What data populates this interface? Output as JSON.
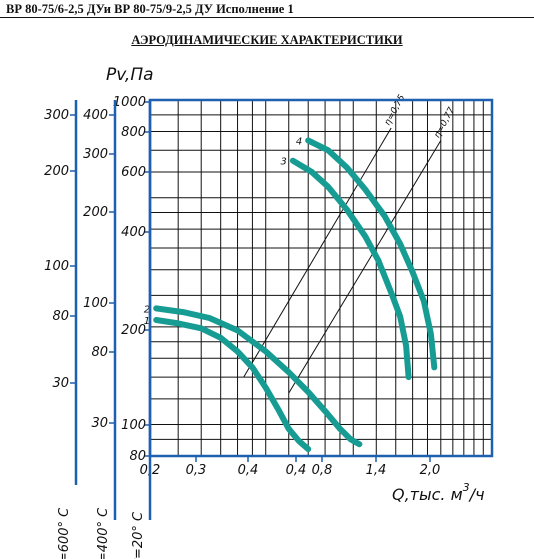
{
  "header": {
    "title": "ВР 80-75/6-2,5 ДУи ВР 80-75/9-2,5 ДУ Исполнение 1"
  },
  "chart_data": {
    "type": "line",
    "title": "АЭРОДИНАМИЧЕСКИЕ ХАРАКТЕРИСТИКИ",
    "ylabel": "Pv,Па",
    "xlabel": "Q,тыс. м³/ч",
    "xlabel_parts": {
      "main": "Q,тыс. м",
      "sup": "3",
      "tail": "/ч"
    },
    "x_scale": "log",
    "y_scale": "log",
    "xlim": [
      0.2,
      3.0
    ],
    "ylim": [
      80,
      1000
    ],
    "grid": true,
    "x_ticks": [
      "0,2",
      "0,3",
      "0,4",
      "0,4",
      "0,8",
      "1,4",
      "2,0"
    ],
    "y_ticks": [
      "80",
      "100",
      "200",
      "400",
      "600",
      "800",
      "1000"
    ],
    "aux_axes": [
      {
        "label": "t=600° C",
        "ticks": [
          "300",
          "200",
          "100",
          "80",
          "30"
        ]
      },
      {
        "label": "t=400° C",
        "ticks": [
          "400",
          "300",
          "200",
          "100",
          "80",
          "30"
        ]
      },
      {
        "label": "t=20° C",
        "ticks": [
          "1000",
          "800",
          "600",
          "400",
          "300",
          "200",
          "100",
          "80"
        ]
      }
    ],
    "efficiency_lines": [
      {
        "label": "η=0,75",
        "points": [
          [
            0.42,
            140
          ],
          [
            1.35,
            820
          ]
        ]
      },
      {
        "label": "η=0,77",
        "points": [
          [
            0.6,
            125
          ],
          [
            2.0,
            750
          ]
        ]
      }
    ],
    "series": [
      {
        "name": "1",
        "points": [
          [
            0.21,
            210
          ],
          [
            0.25,
            205
          ],
          [
            0.3,
            198
          ],
          [
            0.35,
            185
          ],
          [
            0.4,
            168
          ],
          [
            0.45,
            150
          ],
          [
            0.5,
            130
          ],
          [
            0.55,
            112
          ],
          [
            0.6,
            97
          ],
          [
            0.65,
            89
          ],
          [
            0.7,
            84
          ]
        ]
      },
      {
        "name": "2",
        "points": [
          [
            0.21,
            228
          ],
          [
            0.26,
            222
          ],
          [
            0.32,
            213
          ],
          [
            0.4,
            195
          ],
          [
            0.5,
            168
          ],
          [
            0.6,
            145
          ],
          [
            0.7,
            126
          ],
          [
            0.8,
            110
          ],
          [
            0.9,
            97
          ],
          [
            0.98,
            90
          ],
          [
            1.05,
            87
          ]
        ]
      },
      {
        "name": "3",
        "points": [
          [
            0.62,
            650
          ],
          [
            0.72,
            600
          ],
          [
            0.82,
            540
          ],
          [
            0.95,
            460
          ],
          [
            1.1,
            380
          ],
          [
            1.22,
            320
          ],
          [
            1.35,
            255
          ],
          [
            1.45,
            215
          ],
          [
            1.52,
            175
          ],
          [
            1.55,
            140
          ]
        ]
      },
      {
        "name": "4",
        "points": [
          [
            0.7,
            750
          ],
          [
            0.82,
            700
          ],
          [
            0.95,
            620
          ],
          [
            1.1,
            530
          ],
          [
            1.28,
            440
          ],
          [
            1.45,
            360
          ],
          [
            1.6,
            295
          ],
          [
            1.75,
            240
          ],
          [
            1.85,
            190
          ],
          [
            1.9,
            150
          ]
        ]
      }
    ],
    "colors": {
      "series": "#179c94",
      "axis": "#1e5fb0",
      "ink": "#111111"
    }
  }
}
